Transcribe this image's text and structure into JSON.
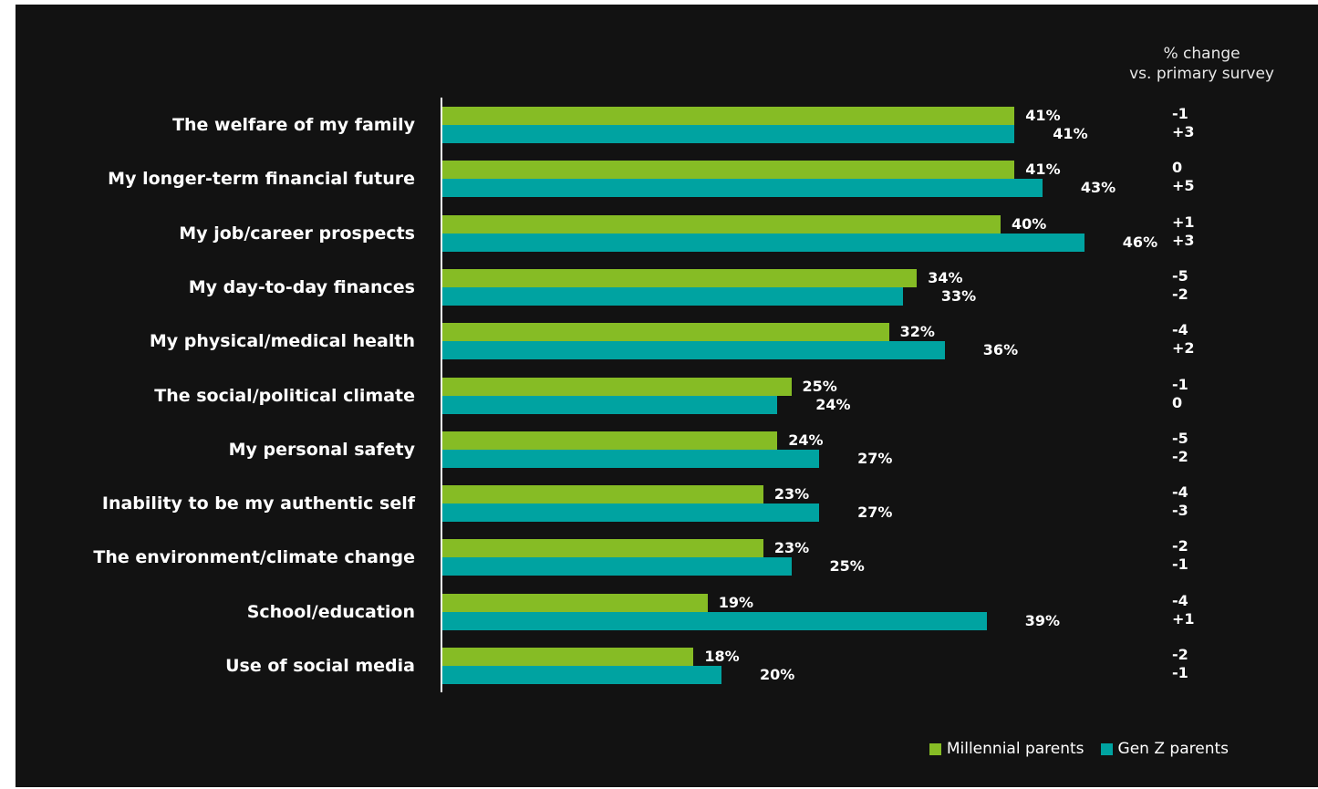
{
  "chart_data": {
    "type": "bar",
    "orientation": "horizontal",
    "categories": [
      "The welfare of my family",
      "My longer-term financial future",
      "My job/career prospects",
      "My day-to-day finances",
      "My physical/medical health",
      "The social/political climate",
      "My personal safety",
      "Inability to be my authentic self",
      "The environment/climate change",
      "School/education",
      "Use of social media"
    ],
    "series": [
      {
        "name": "Millennial parents",
        "color": "#86bc25",
        "values": [
          41,
          41,
          40,
          34,
          32,
          25,
          24,
          23,
          23,
          19,
          18
        ],
        "labels": [
          "41%",
          "41%",
          "40%",
          "34%",
          "32%",
          "25%",
          "24%",
          "23%",
          "23%",
          "19%",
          "18%"
        ],
        "change": [
          "-1",
          "0",
          "+1",
          "-5",
          "-4",
          "-1",
          "-5",
          "-4",
          "-2",
          "-4",
          "-2"
        ]
      },
      {
        "name": "Gen Z parents",
        "color": "#00a3a1",
        "values": [
          41,
          43,
          46,
          33,
          36,
          24,
          27,
          27,
          25,
          39,
          20
        ],
        "labels": [
          "41%",
          "43%",
          "46%",
          "33%",
          "36%",
          "24%",
          "27%",
          "27%",
          "25%",
          "39%",
          "20%"
        ],
        "change": [
          "+3",
          "+5",
          "+3",
          "-2",
          "+2",
          "0",
          "-2",
          "-3",
          "-1",
          "+1",
          "-1"
        ]
      }
    ],
    "change_header": [
      "% change",
      "vs. primary survey"
    ],
    "xlim": [
      0,
      50
    ],
    "legend": "bottom-right",
    "grid": false,
    "background": "#121212"
  }
}
